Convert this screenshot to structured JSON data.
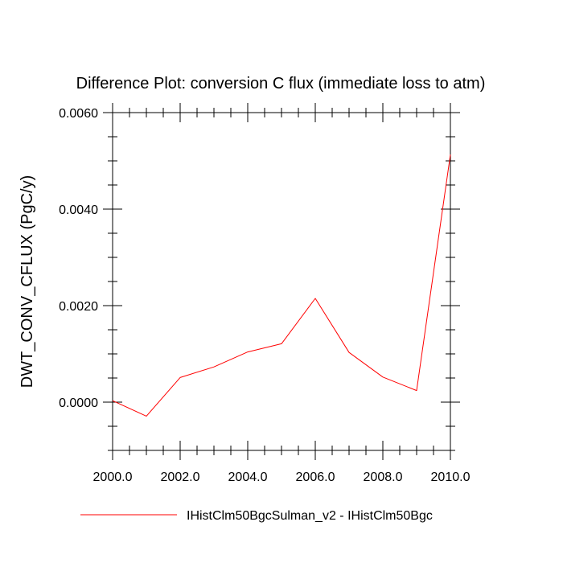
{
  "chart_data": {
    "type": "line",
    "title": "Difference Plot: conversion C flux (immediate loss to atm)",
    "ylabel": "DWT_CONV_CFLUX  (PgC/y)",
    "xlabel": "",
    "xlim": [
      2000,
      2010
    ],
    "ylim": [
      -0.001,
      0.006
    ],
    "x_ticks": [
      2000,
      2002,
      2004,
      2006,
      2008,
      2010
    ],
    "x_tick_labels": [
      "2000.0",
      "2002.0",
      "2004.0",
      "2006.0",
      "2008.0",
      "2010.0"
    ],
    "y_ticks": [
      0,
      0.002,
      0.004,
      0.006
    ],
    "y_tick_labels": [
      "0.0000",
      "0.0020",
      "0.0040",
      "0.0060"
    ],
    "grid": false,
    "legend_position": "bottom",
    "series": [
      {
        "name": "IHistClm50BgcSulman_v2 - IHistClm50Bgc",
        "color": "#ff0000",
        "x": [
          2000,
          2001,
          2002,
          2003,
          2004,
          2005,
          2006,
          2007,
          2008,
          2009,
          2010
        ],
        "values": [
          3e-05,
          -0.00029,
          0.00051,
          0.00073,
          0.00104,
          0.00121,
          0.00215,
          0.00103,
          0.00052,
          0.00024,
          0.00513
        ]
      }
    ]
  }
}
